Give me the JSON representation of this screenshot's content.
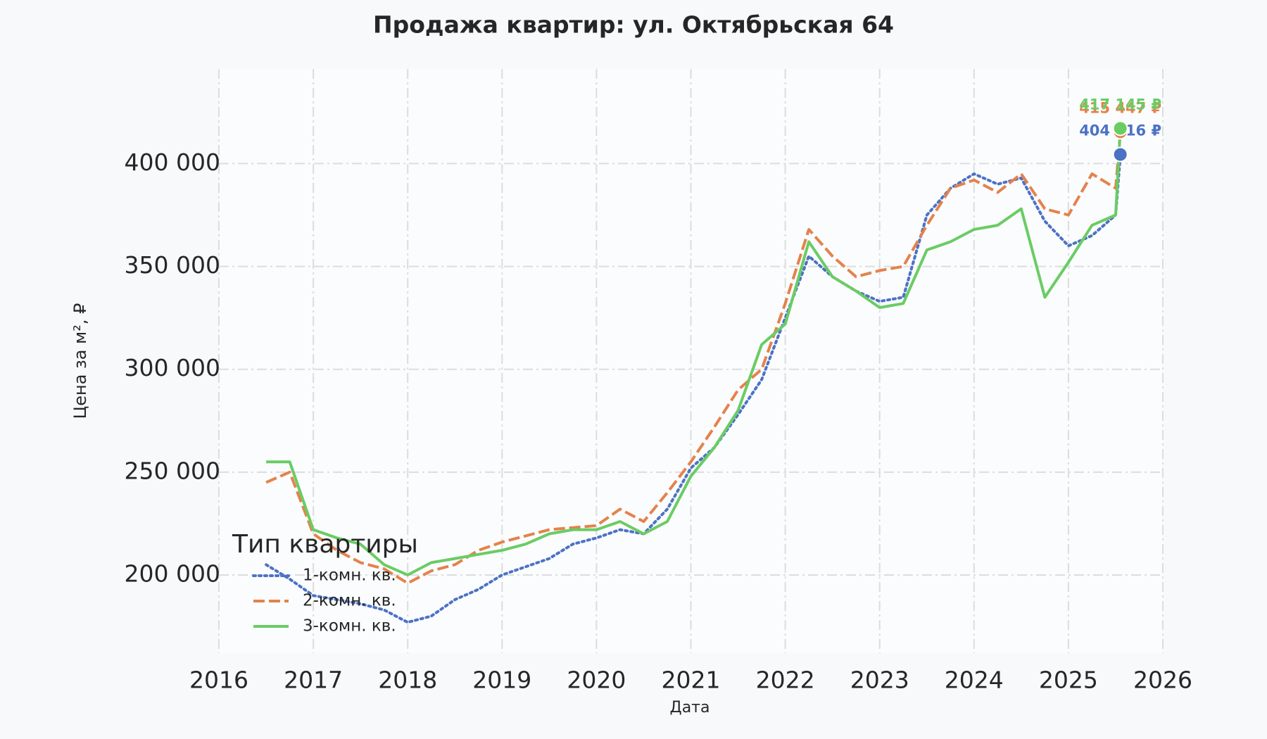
{
  "chart_data": {
    "type": "line",
    "title": "Продажа квартир: ул. Октябрьская 64",
    "x_label": "Дата",
    "y_label": "Цена за м², ₽",
    "legend_title": "Тип квартиры",
    "legend_position": "lower left",
    "grid": true,
    "xlim": [
      2016,
      2026
    ],
    "xticks": [
      2016,
      2017,
      2018,
      2019,
      2020,
      2021,
      2022,
      2023,
      2024,
      2025,
      2026
    ],
    "ylim": [
      162000,
      446000
    ],
    "yticks": [
      {
        "value": 200000,
        "label": "200 000"
      },
      {
        "value": 250000,
        "label": "250 000"
      },
      {
        "value": 300000,
        "label": "300 000"
      },
      {
        "value": 350000,
        "label": "350 000"
      },
      {
        "value": 400000,
        "label": "400 000"
      }
    ],
    "x": [
      2016.5,
      2016.75,
      2017.0,
      2017.25,
      2017.5,
      2017.75,
      2018.0,
      2018.25,
      2018.5,
      2018.75,
      2019.0,
      2019.25,
      2019.5,
      2019.75,
      2020.0,
      2020.25,
      2020.5,
      2020.75,
      2021.0,
      2021.25,
      2021.5,
      2021.75,
      2022.0,
      2022.25,
      2022.5,
      2022.75,
      2023.0,
      2023.25,
      2023.5,
      2023.75,
      2024.0,
      2024.25,
      2024.5,
      2024.75,
      2025.0,
      2025.25,
      2025.5,
      2025.55
    ],
    "series": [
      {
        "name": "1-комн. кв.",
        "color": "#4c72c4",
        "dash": "dotted",
        "values": [
          205000,
          198000,
          190000,
          188000,
          186000,
          183000,
          177000,
          180000,
          188000,
          193000,
          200000,
          204000,
          208000,
          215000,
          218000,
          222000,
          220000,
          232000,
          252000,
          262000,
          278000,
          295000,
          325000,
          355000,
          345000,
          338000,
          333000,
          335000,
          375000,
          388000,
          395000,
          390000,
          393000,
          372000,
          360000,
          365000,
          375000,
          404416
        ],
        "value_labels": [
          null,
          null,
          null,
          null,
          null,
          null,
          null,
          null,
          null,
          null,
          null,
          null,
          null,
          null,
          null,
          null,
          null,
          null,
          null,
          null,
          null,
          null,
          null,
          null,
          null,
          null,
          null,
          null,
          null,
          null,
          null,
          null,
          null,
          null,
          null,
          null,
          null,
          "404 416 ₽"
        ]
      },
      {
        "name": "2-комн. кв.",
        "color": "#e4824c",
        "dash": "dashed",
        "values": [
          245000,
          250000,
          220000,
          212000,
          206000,
          203000,
          196000,
          202000,
          205000,
          212000,
          216000,
          219000,
          222000,
          223000,
          224000,
          232000,
          226000,
          240000,
          255000,
          272000,
          290000,
          300000,
          332000,
          368000,
          355000,
          345000,
          348000,
          350000,
          370000,
          388000,
          392000,
          386000,
          395000,
          378000,
          375000,
          395000,
          388000,
          415447
        ],
        "value_labels": [
          null,
          null,
          null,
          null,
          null,
          null,
          null,
          null,
          null,
          null,
          null,
          null,
          null,
          null,
          null,
          null,
          null,
          null,
          null,
          null,
          null,
          null,
          null,
          null,
          null,
          null,
          null,
          null,
          null,
          null,
          null,
          null,
          null,
          null,
          null,
          null,
          null,
          "415 447 ₽"
        ]
      },
      {
        "name": "3-комн. кв.",
        "color": "#6acc64",
        "dash": "solid",
        "values": [
          255000,
          255000,
          222000,
          218000,
          215000,
          205000,
          200000,
          206000,
          208000,
          210000,
          212000,
          215000,
          220000,
          222000,
          222000,
          226000,
          220000,
          226000,
          248000,
          262000,
          280000,
          312000,
          322000,
          362000,
          345000,
          338000,
          330000,
          332000,
          358000,
          362000,
          368000,
          370000,
          378000,
          335000,
          352000,
          370000,
          375000,
          417145
        ],
        "value_labels": [
          null,
          null,
          null,
          null,
          null,
          null,
          null,
          null,
          null,
          null,
          null,
          null,
          null,
          null,
          null,
          null,
          null,
          null,
          null,
          null,
          null,
          null,
          null,
          null,
          null,
          null,
          null,
          null,
          null,
          null,
          null,
          null,
          null,
          null,
          null,
          null,
          null,
          "417 145 ₽"
        ]
      }
    ]
  }
}
